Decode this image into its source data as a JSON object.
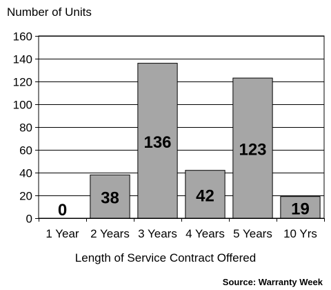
{
  "chart_data": {
    "type": "bar",
    "title": "",
    "ylabel": "Number of Units",
    "xlabel": "Length of Service Contract Offered",
    "source": "Source: Warranty Week",
    "categories": [
      "1 Year",
      "2 Years",
      "3 Years",
      "4 Years",
      "5 Years",
      "10 Yrs"
    ],
    "values": [
      0,
      38,
      136,
      42,
      123,
      19
    ],
    "data_labels": [
      "0",
      "38",
      "136",
      "42",
      "123",
      "19"
    ],
    "yticks": [
      "0",
      "20",
      "40",
      "60",
      "80",
      "100",
      "120",
      "140",
      "160"
    ],
    "ylim": [
      0,
      160
    ],
    "grid": true,
    "legend": "none",
    "bar_color": "#a6a6a6",
    "bar_edge_color": "#000000",
    "grid_color": "#000000"
  }
}
